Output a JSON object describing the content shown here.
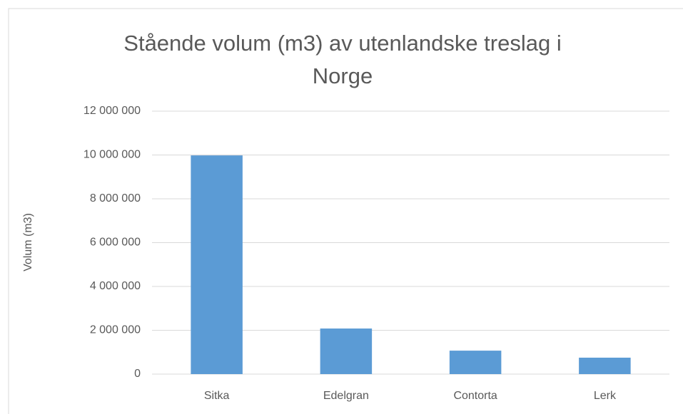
{
  "chart_data": {
    "type": "bar",
    "title": "Stående volum (m3) av utenlandske treslag i Norge",
    "y_label": "Volum (m3)",
    "categories": [
      "Sitka",
      "Edelgran",
      "Contorta",
      "Lerk"
    ],
    "values": [
      9980000,
      2080000,
      1070000,
      750000
    ],
    "color": "#5b9bd5",
    "ylim": [
      0,
      12000000
    ],
    "yticks": [
      0,
      {
        "value": 2000000,
        "label": "2 000 000"
      },
      {
        "value": 4000000,
        "label": "4 000 000"
      },
      {
        "value": 6000000,
        "label": "6 000 000"
      },
      {
        "value": 8000000,
        "label": "8 000 000"
      },
      {
        "value": 10000000,
        "label": "10 000 000"
      },
      {
        "value": 12000000,
        "label": "12 000 000"
      }
    ],
    "grid": true
  }
}
